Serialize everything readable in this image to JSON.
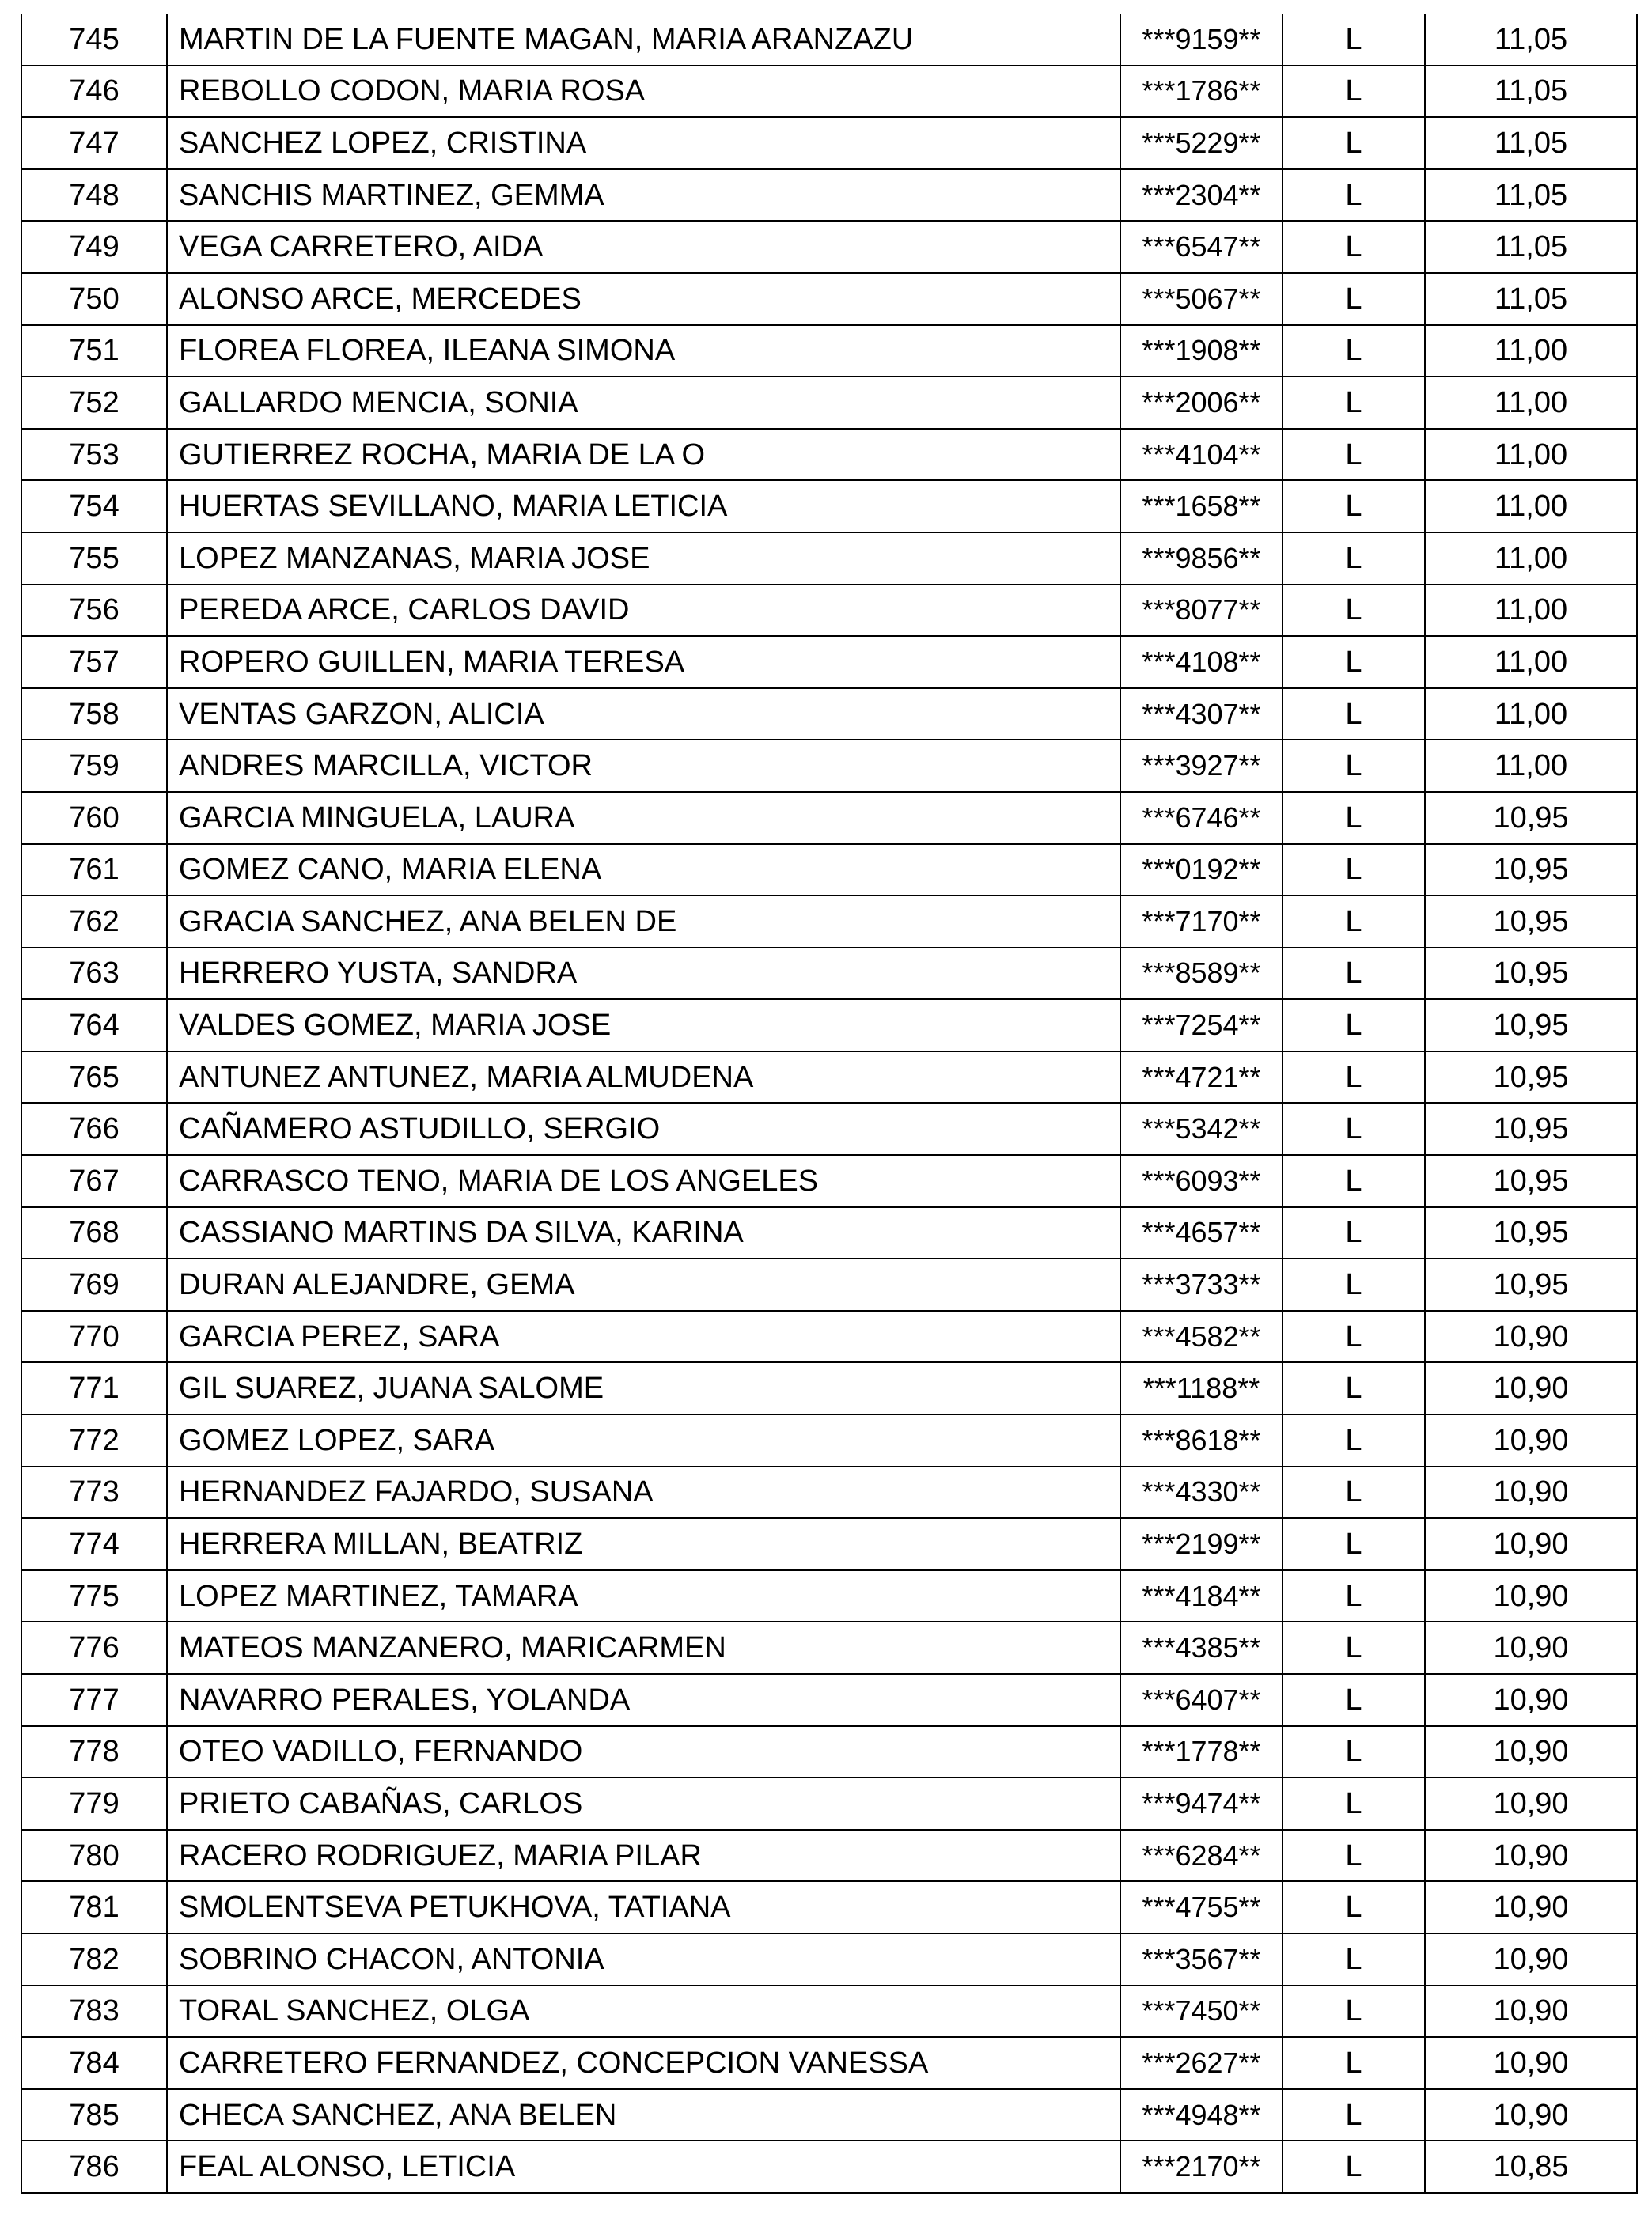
{
  "rows": [
    {
      "n": "745",
      "name": "MARTIN DE LA FUENTE MAGAN, MARIA ARANZAZU",
      "id": "***9159**",
      "type": "L",
      "score": "11,05"
    },
    {
      "n": "746",
      "name": "REBOLLO CODON, MARIA ROSA",
      "id": "***1786**",
      "type": "L",
      "score": "11,05"
    },
    {
      "n": "747",
      "name": "SANCHEZ LOPEZ, CRISTINA",
      "id": "***5229**",
      "type": "L",
      "score": "11,05"
    },
    {
      "n": "748",
      "name": "SANCHIS MARTINEZ, GEMMA",
      "id": "***2304**",
      "type": "L",
      "score": "11,05"
    },
    {
      "n": "749",
      "name": "VEGA CARRETERO, AIDA",
      "id": "***6547**",
      "type": "L",
      "score": "11,05"
    },
    {
      "n": "750",
      "name": "ALONSO ARCE, MERCEDES",
      "id": "***5067**",
      "type": "L",
      "score": "11,05"
    },
    {
      "n": "751",
      "name": "FLOREA FLOREA, ILEANA SIMONA",
      "id": "***1908**",
      "type": "L",
      "score": "11,00"
    },
    {
      "n": "752",
      "name": "GALLARDO MENCIA, SONIA",
      "id": "***2006**",
      "type": "L",
      "score": "11,00"
    },
    {
      "n": "753",
      "name": "GUTIERREZ ROCHA, MARIA DE LA O",
      "id": "***4104**",
      "type": "L",
      "score": "11,00"
    },
    {
      "n": "754",
      "name": "HUERTAS SEVILLANO, MARIA LETICIA",
      "id": "***1658**",
      "type": "L",
      "score": "11,00"
    },
    {
      "n": "755",
      "name": "LOPEZ MANZANAS, MARIA JOSE",
      "id": "***9856**",
      "type": "L",
      "score": "11,00"
    },
    {
      "n": "756",
      "name": "PEREDA ARCE, CARLOS DAVID",
      "id": "***8077**",
      "type": "L",
      "score": "11,00"
    },
    {
      "n": "757",
      "name": "ROPERO GUILLEN, MARIA TERESA",
      "id": "***4108**",
      "type": "L",
      "score": "11,00"
    },
    {
      "n": "758",
      "name": "VENTAS GARZON, ALICIA",
      "id": "***4307**",
      "type": "L",
      "score": "11,00"
    },
    {
      "n": "759",
      "name": "ANDRES MARCILLA, VICTOR",
      "id": "***3927**",
      "type": "L",
      "score": "11,00"
    },
    {
      "n": "760",
      "name": "GARCIA MINGUELA, LAURA",
      "id": "***6746**",
      "type": "L",
      "score": "10,95"
    },
    {
      "n": "761",
      "name": "GOMEZ CANO, MARIA ELENA",
      "id": "***0192**",
      "type": "L",
      "score": "10,95"
    },
    {
      "n": "762",
      "name": "GRACIA SANCHEZ, ANA BELEN DE",
      "id": "***7170**",
      "type": "L",
      "score": "10,95"
    },
    {
      "n": "763",
      "name": "HERRERO YUSTA, SANDRA",
      "id": "***8589**",
      "type": "L",
      "score": "10,95"
    },
    {
      "n": "764",
      "name": "VALDES GOMEZ, MARIA JOSE",
      "id": "***7254**",
      "type": "L",
      "score": "10,95"
    },
    {
      "n": "765",
      "name": "ANTUNEZ ANTUNEZ, MARIA ALMUDENA",
      "id": "***4721**",
      "type": "L",
      "score": "10,95"
    },
    {
      "n": "766",
      "name": "CAÑAMERO ASTUDILLO, SERGIO",
      "id": "***5342**",
      "type": "L",
      "score": "10,95"
    },
    {
      "n": "767",
      "name": "CARRASCO TENO, MARIA DE LOS ANGELES",
      "id": "***6093**",
      "type": "L",
      "score": "10,95"
    },
    {
      "n": "768",
      "name": "CASSIANO MARTINS DA SILVA, KARINA",
      "id": "***4657**",
      "type": "L",
      "score": "10,95"
    },
    {
      "n": "769",
      "name": "DURAN ALEJANDRE, GEMA",
      "id": "***3733**",
      "type": "L",
      "score": "10,95"
    },
    {
      "n": "770",
      "name": "GARCIA PEREZ, SARA",
      "id": "***4582**",
      "type": "L",
      "score": "10,90"
    },
    {
      "n": "771",
      "name": "GIL SUAREZ, JUANA SALOME",
      "id": "***1188**",
      "type": "L",
      "score": "10,90"
    },
    {
      "n": "772",
      "name": "GOMEZ LOPEZ, SARA",
      "id": "***8618**",
      "type": "L",
      "score": "10,90"
    },
    {
      "n": "773",
      "name": "HERNANDEZ FAJARDO, SUSANA",
      "id": "***4330**",
      "type": "L",
      "score": "10,90"
    },
    {
      "n": "774",
      "name": "HERRERA MILLAN, BEATRIZ",
      "id": "***2199**",
      "type": "L",
      "score": "10,90"
    },
    {
      "n": "775",
      "name": "LOPEZ MARTINEZ, TAMARA",
      "id": "***4184**",
      "type": "L",
      "score": "10,90"
    },
    {
      "n": "776",
      "name": "MATEOS MANZANERO, MARICARMEN",
      "id": "***4385**",
      "type": "L",
      "score": "10,90"
    },
    {
      "n": "777",
      "name": "NAVARRO PERALES, YOLANDA",
      "id": "***6407**",
      "type": "L",
      "score": "10,90"
    },
    {
      "n": "778",
      "name": "OTEO VADILLO, FERNANDO",
      "id": "***1778**",
      "type": "L",
      "score": "10,90"
    },
    {
      "n": "779",
      "name": "PRIETO CABAÑAS, CARLOS",
      "id": "***9474**",
      "type": "L",
      "score": "10,90"
    },
    {
      "n": "780",
      "name": "RACERO RODRIGUEZ, MARIA PILAR",
      "id": "***6284**",
      "type": "L",
      "score": "10,90"
    },
    {
      "n": "781",
      "name": "SMOLENTSEVA PETUKHOVA, TATIANA",
      "id": "***4755**",
      "type": "L",
      "score": "10,90"
    },
    {
      "n": "782",
      "name": "SOBRINO CHACON, ANTONIA",
      "id": "***3567**",
      "type": "L",
      "score": "10,90"
    },
    {
      "n": "783",
      "name": "TORAL SANCHEZ, OLGA",
      "id": "***7450**",
      "type": "L",
      "score": "10,90"
    },
    {
      "n": "784",
      "name": "CARRETERO FERNANDEZ, CONCEPCION VANESSA",
      "id": "***2627**",
      "type": "L",
      "score": "10,90"
    },
    {
      "n": "785",
      "name": "CHECA SANCHEZ, ANA BELEN",
      "id": "***4948**",
      "type": "L",
      "score": "10,90"
    },
    {
      "n": "786",
      "name": "FEAL ALONSO, LETICIA",
      "id": "***2170**",
      "type": "L",
      "score": "10,85"
    }
  ]
}
